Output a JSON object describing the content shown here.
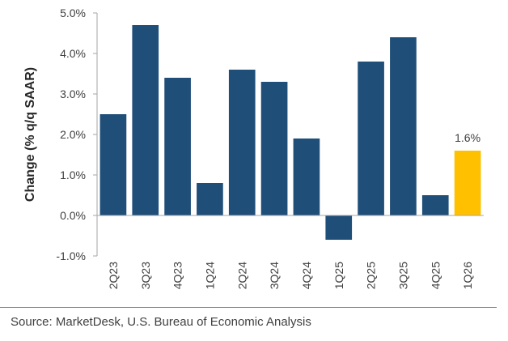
{
  "chart_data": {
    "type": "bar",
    "categories": [
      "2Q23",
      "3Q23",
      "4Q23",
      "1Q24",
      "2Q24",
      "3Q24",
      "4Q24",
      "1Q25",
      "2Q25",
      "3Q25",
      "4Q25",
      "1Q26"
    ],
    "values": [
      2.5,
      4.7,
      3.4,
      0.8,
      3.6,
      3.3,
      1.9,
      -0.6,
      3.8,
      4.4,
      0.5,
      1.6
    ],
    "ylabel": "Change (% q/q SAAR)",
    "ylim": [
      -1.0,
      5.0
    ],
    "yticks": [
      5.0,
      4.0,
      3.0,
      2.0,
      1.0,
      0.0,
      -1.0
    ],
    "ytick_labels": [
      "5.0%",
      "4.0%",
      "3.0%",
      "2.0%",
      "1.0%",
      "0.0%",
      "-1.0%"
    ],
    "annotations": [
      {
        "category": "1Q26",
        "text": "1.6%"
      }
    ],
    "grid": false,
    "colors": {
      "bar": "#1f4e79",
      "highlight": "#ffc000"
    },
    "highlight_category": "1Q26"
  },
  "source": "Source: MarketDesk, U.S. Bureau of Economic Analysis"
}
